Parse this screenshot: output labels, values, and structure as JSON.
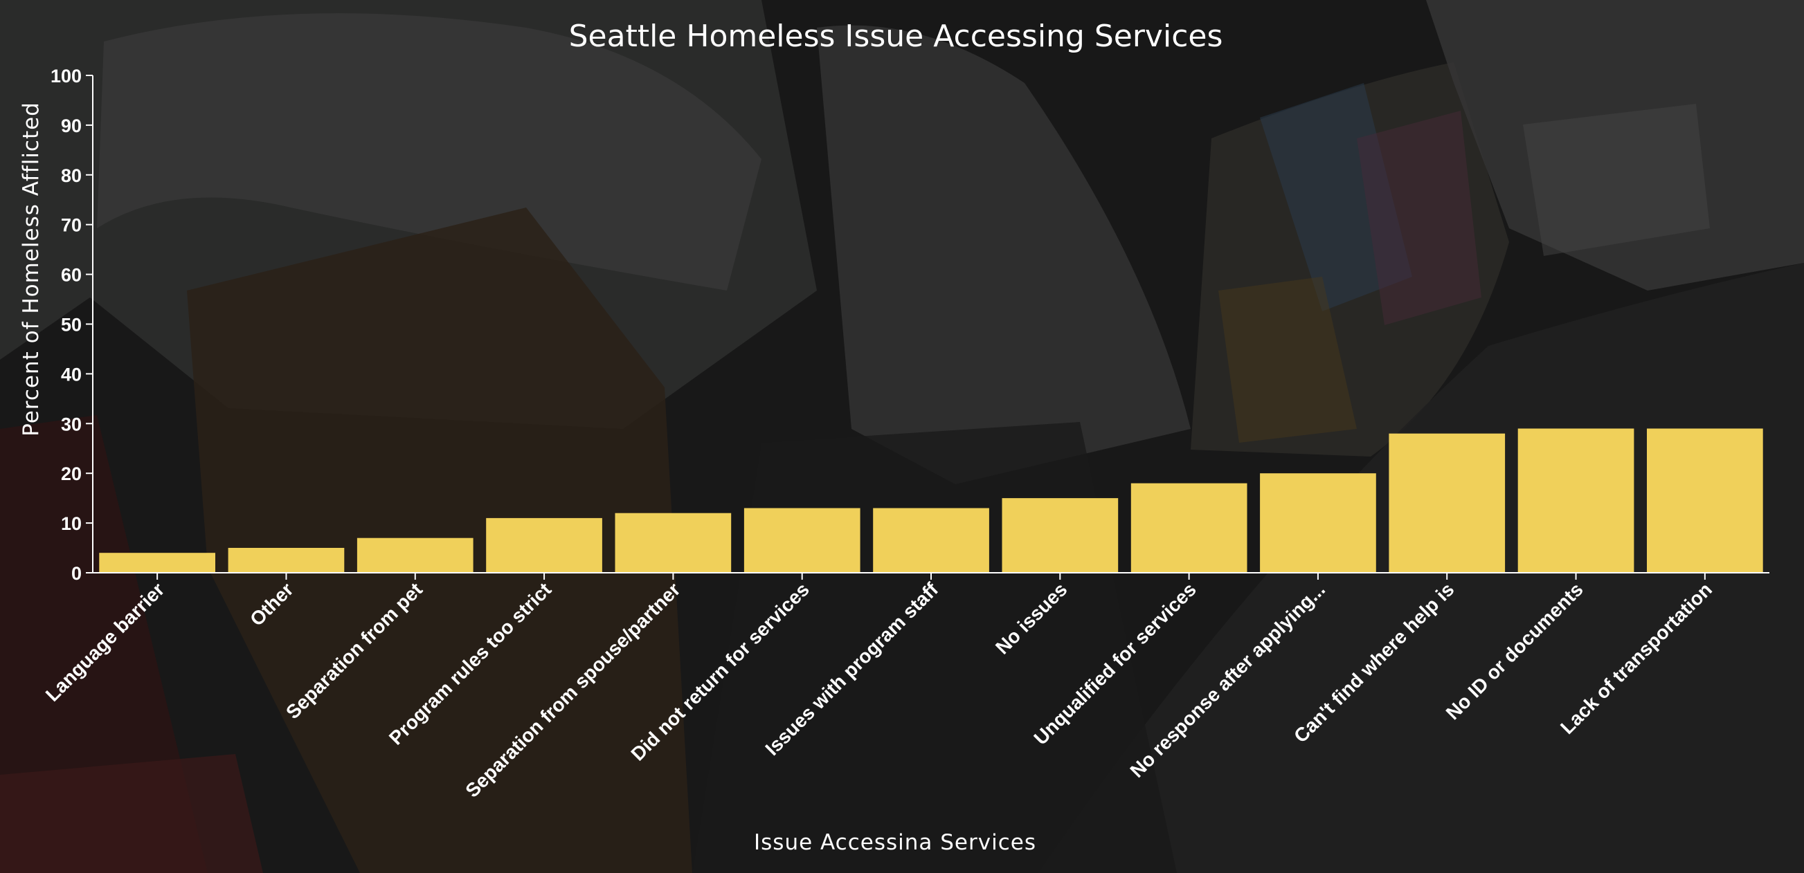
{
  "chart_data": {
    "type": "bar",
    "title": "Seattle Homeless Issue Accessing Services",
    "xlabel": "Issue Accessina Services",
    "ylabel": "Percent of Homeless Afflicted",
    "ylim": [
      0,
      100
    ],
    "yticks": [
      0,
      10,
      20,
      30,
      40,
      50,
      60,
      70,
      80,
      90,
      100
    ],
    "grid": false,
    "legend": "none",
    "bar_color": "#f0d05a",
    "axis_color": "#ffffff",
    "background_color": "#151515",
    "categories": [
      "Language barrier",
      "Other",
      "Separation from pet",
      "Program rules too strict",
      "Separation from spouse/partner",
      "Did not return for services",
      "Issues with program staff",
      "No issues",
      "Unqualified for services",
      "No response after applying...",
      "Can't find where help is",
      "No ID or documents",
      "Lack of transportation"
    ],
    "values": [
      4,
      5,
      7,
      11,
      12,
      13,
      13,
      15,
      18,
      20,
      28,
      29,
      29
    ]
  }
}
